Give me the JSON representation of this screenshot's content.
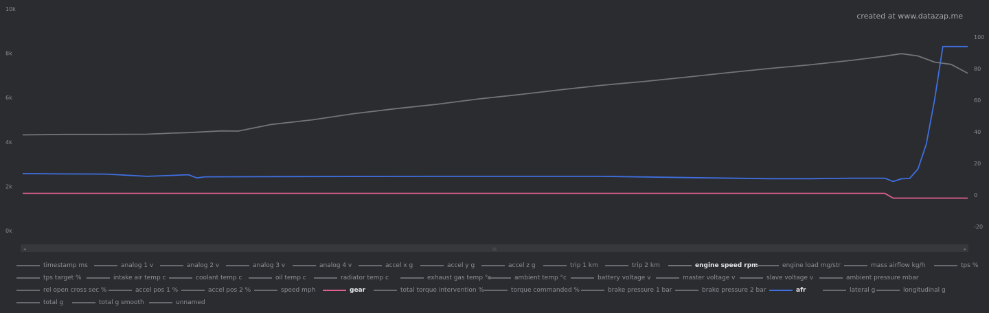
{
  "watermark": "created at www.datazap.me",
  "scrollbar": {
    "left_arrow": "◂",
    "right_arrow": "▸",
    "grip": "⁞⁞⁞"
  },
  "colors": {
    "background": "#2b2c30",
    "engine_speed": "#737478",
    "afr": "#3f6fe0",
    "gear": "#e06090",
    "inactive": "#6a6b70"
  },
  "chart_data": {
    "type": "line",
    "title": "",
    "xlabel": "",
    "y_left": {
      "label": "",
      "range": [
        -250,
        10000
      ],
      "ticks": [
        0,
        2000,
        4000,
        6000,
        8000,
        10000
      ],
      "tick_labels": [
        "0k",
        "2k",
        "4k",
        "6k",
        "8k",
        "10k"
      ]
    },
    "y_right": {
      "label": "",
      "range": [
        -26,
        106
      ],
      "ticks": [
        -20,
        0,
        20,
        40,
        60,
        80,
        100
      ],
      "tick_labels": [
        "-20",
        "0",
        "20",
        "40",
        "60",
        "80",
        "100"
      ]
    },
    "grid": false,
    "legend_position": "bottom",
    "series": [
      {
        "name": "engine speed rpm",
        "axis": "left",
        "color": "#737478",
        "x": [
          0,
          5,
          10,
          15,
          17,
          18,
          20,
          24,
          26,
          30,
          35,
          40,
          45,
          50,
          55,
          60,
          65,
          70,
          75,
          80,
          85,
          90,
          95,
          100,
          104,
          106,
          108,
          110,
          112,
          114
        ],
        "y": [
          4320,
          4340,
          4340,
          4350,
          4380,
          4400,
          4420,
          4500,
          4490,
          4790,
          5000,
          5280,
          5500,
          5700,
          5940,
          6140,
          6360,
          6560,
          6730,
          6920,
          7120,
          7310,
          7480,
          7680,
          7870,
          7980,
          7880,
          7600,
          7500,
          7100
        ]
      },
      {
        "name": "afr",
        "axis": "right",
        "color": "#3f6fe0",
        "x": [
          0,
          5,
          10,
          15,
          20,
          21,
          22,
          30,
          40,
          50,
          60,
          70,
          80,
          90,
          95,
          100,
          102,
          104,
          105,
          106,
          107,
          108,
          109,
          110,
          111,
          112,
          114
        ],
        "y": [
          13.5,
          13.3,
          13.2,
          11.8,
          12.8,
          10.8,
          11.5,
          11.6,
          11.7,
          11.8,
          11.8,
          11.8,
          11.0,
          10.3,
          10.3,
          10.6,
          10.6,
          10.6,
          8.5,
          10.2,
          10.5,
          16.5,
          32,
          60,
          94,
          94,
          94
        ]
      },
      {
        "name": "gear",
        "axis": "right",
        "color": "#e06090",
        "x": [
          0,
          20,
          40,
          60,
          80,
          100,
          104,
          105,
          110,
          114
        ],
        "y": [
          1,
          1,
          1,
          1,
          1,
          1,
          1,
          -2,
          -2,
          -2
        ]
      }
    ]
  },
  "legend": {
    "items": [
      {
        "label": "timestamp ms",
        "active": false
      },
      {
        "label": "analog 1 v",
        "active": false
      },
      {
        "label": "analog 2 v",
        "active": false
      },
      {
        "label": "analog 3 v",
        "active": false
      },
      {
        "label": "analog 4 v",
        "active": false
      },
      {
        "label": "accel x g",
        "active": false
      },
      {
        "label": "accel y g",
        "active": false
      },
      {
        "label": "accel z g",
        "active": false
      },
      {
        "label": "trip 1 km",
        "active": false
      },
      {
        "label": "trip 2 km",
        "active": false
      },
      {
        "label": "engine speed rpm",
        "active": true,
        "color": "#737478"
      },
      {
        "label": "engine load mg/str",
        "active": false
      },
      {
        "label": "mass airflow kg/h",
        "active": false
      },
      {
        "label": "tps %",
        "active": false
      },
      {
        "label": "tps target %",
        "active": false
      },
      {
        "label": "intake air temp c",
        "active": false
      },
      {
        "label": "coolant temp c",
        "active": false
      },
      {
        "label": "oil temp c",
        "active": false
      },
      {
        "label": "radiator temp c",
        "active": false
      },
      {
        "label": "exhaust gas temp °c",
        "active": false
      },
      {
        "label": "ambient temp °c",
        "active": false
      },
      {
        "label": "battery voltage v",
        "active": false
      },
      {
        "label": "master voltage v",
        "active": false
      },
      {
        "label": "slave voltage v",
        "active": false
      },
      {
        "label": "ambient pressure mbar",
        "active": false
      },
      {
        "label": "rel open cross sec %",
        "active": false
      },
      {
        "label": "accel pos 1 %",
        "active": false
      },
      {
        "label": "accel pos 2 %",
        "active": false
      },
      {
        "label": "speed mph",
        "active": false
      },
      {
        "label": "gear",
        "active": true,
        "color": "#e06090"
      },
      {
        "label": "total torque intervention %",
        "active": false
      },
      {
        "label": "torque commanded %",
        "active": false
      },
      {
        "label": "brake pressure 1 bar",
        "active": false
      },
      {
        "label": "brake pressure 2 bar",
        "active": false
      },
      {
        "label": "afr",
        "active": true,
        "color": "#3f6fe0"
      },
      {
        "label": "lateral g",
        "active": false
      },
      {
        "label": "longitudinal g",
        "active": false
      },
      {
        "label": "total g",
        "active": false
      },
      {
        "label": "total g smooth",
        "active": false
      },
      {
        "label": "unnamed",
        "active": false
      }
    ]
  }
}
